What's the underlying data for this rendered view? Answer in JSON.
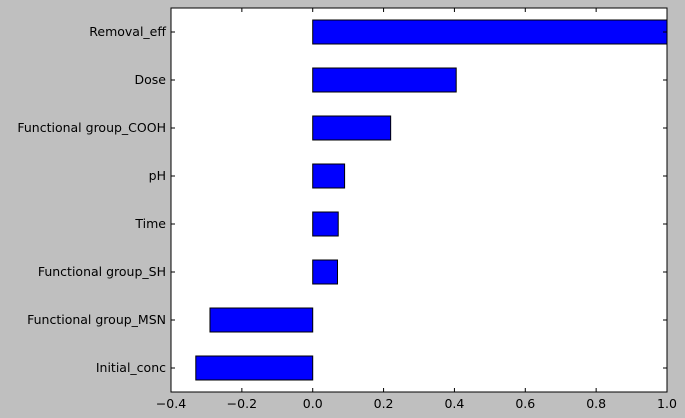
{
  "chart_data": {
    "type": "bar",
    "orientation": "horizontal",
    "categories": [
      "Removal_eff",
      "Dose",
      "Functional group_COOH",
      "pH",
      "Time",
      "Functional group_SH",
      "Functional group_MSN",
      "Initial_conc"
    ],
    "values": [
      1.0,
      0.405,
      0.22,
      0.09,
      0.072,
      0.07,
      -0.29,
      -0.33
    ],
    "xlim": [
      -0.4,
      1.0
    ],
    "xticks": [
      "−0.4",
      "−0.2",
      "0.0",
      "0.2",
      "0.4",
      "0.6",
      "0.8",
      "1.0"
    ],
    "title": "",
    "xlabel": "",
    "ylabel": "",
    "grid": false,
    "bar_color": "#0000ff",
    "edge_color": "#000000",
    "figure_background": "#bfbfbf",
    "plot_background": "#ffffff"
  }
}
